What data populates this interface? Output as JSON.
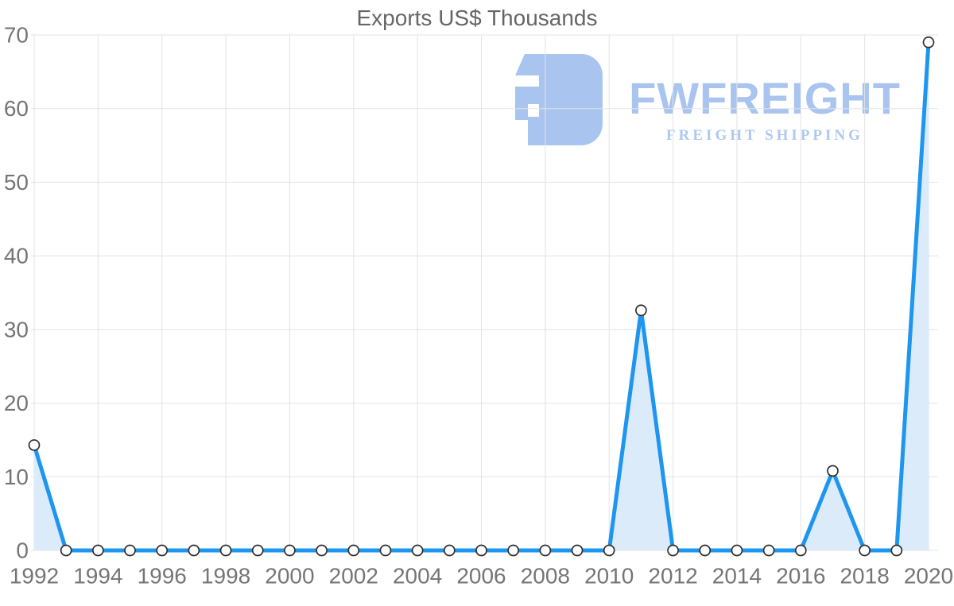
{
  "watermark": {
    "brand": "FWFREIGHT",
    "tagline": "FREIGHT SHIPPING",
    "logo_icon": "fwfreight-logo-icon"
  },
  "colors": {
    "line": "#1e96f0",
    "area": "#dcebfa",
    "grid": "#e3e3e3",
    "tick": "#757575",
    "title": "#666666",
    "marker_fill": "#ffffff",
    "marker_border": "#2f2f2f",
    "brand": "#a9c4ef",
    "brand_light": "#adc8f1"
  },
  "chart_data": {
    "type": "area",
    "title": "Exports US$ Thousands",
    "xlabel": "",
    "ylabel": "",
    "x": [
      1992,
      1993,
      1994,
      1995,
      1996,
      1997,
      1998,
      1999,
      2000,
      2001,
      2002,
      2003,
      2004,
      2005,
      2006,
      2007,
      2008,
      2009,
      2010,
      2011,
      2012,
      2013,
      2014,
      2015,
      2016,
      2017,
      2018,
      2019,
      2020
    ],
    "values": [
      14.3,
      0,
      0,
      0,
      0,
      0,
      0,
      0,
      0,
      0,
      0,
      0,
      0,
      0,
      0,
      0,
      0,
      0,
      0,
      32.6,
      0,
      0,
      0,
      0,
      0,
      10.8,
      0,
      0,
      69
    ],
    "series_name": "Exports",
    "x_ticks": [
      1992,
      1994,
      1996,
      1998,
      2000,
      2002,
      2004,
      2006,
      2008,
      2010,
      2012,
      2014,
      2016,
      2018,
      2020
    ],
    "y_ticks": [
      0,
      10,
      20,
      30,
      40,
      50,
      60,
      70
    ],
    "ylim": [
      0,
      70
    ],
    "grid": true,
    "legend_position": "none",
    "marker": "circle"
  }
}
